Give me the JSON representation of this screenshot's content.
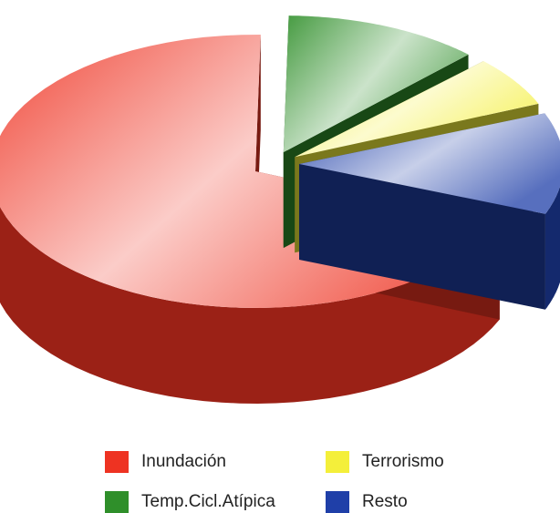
{
  "chart_data": {
    "type": "pie",
    "title": "",
    "categories": [
      "Inundación",
      "Temp.Cicl.Atípica",
      "Terrorismo",
      "Resto"
    ],
    "values": [
      70,
      12,
      6,
      12
    ],
    "colors": {
      "Inundación": "#ee3322",
      "Temp.Cicl.Atípica": "#2f8f2a",
      "Terrorismo": "#f4ef3a",
      "Resto": "#1f3fa8"
    },
    "legend": {
      "placement": "bottom",
      "order": [
        "Inundación",
        "Terrorismo",
        "Temp.Cicl.Atípica",
        "Resto"
      ]
    },
    "style": "3d-exploded"
  }
}
